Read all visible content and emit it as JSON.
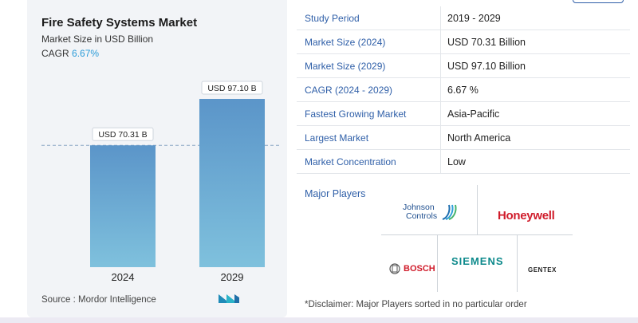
{
  "header": {
    "title": "Fire Safety Systems Market",
    "subtitle": "Market Size in USD Billion",
    "cagr_label": "CAGR",
    "cagr_value": "6.67%"
  },
  "chart_data": {
    "type": "bar",
    "categories": [
      "2024",
      "2029"
    ],
    "values": [
      70.31,
      97.1
    ],
    "data_labels": [
      "USD 70.31 B",
      "USD 97.10 B"
    ],
    "title": "Fire Safety Systems Market",
    "subtitle": "Market Size in USD Billion",
    "ylim": [
      0,
      110
    ],
    "reference_line": 70.31,
    "grid": false,
    "bar_color": "#5b95c9",
    "bar_color_light": "#7fc1dd"
  },
  "source": "Source :  Mordor Intelligence",
  "table": [
    {
      "label": "Study Period",
      "value": "2019 - 2029"
    },
    {
      "label": "Market Size (2024)",
      "value": "USD 70.31 Billion"
    },
    {
      "label": "Market Size (2029)",
      "value": "USD 97.10 Billion"
    },
    {
      "label": "CAGR (2024 - 2029)",
      "value": "6.67 %"
    },
    {
      "label": "Fastest Growing Market",
      "value": "Asia-Pacific"
    },
    {
      "label": "Largest Market",
      "value": "North America"
    },
    {
      "label": "Market Concentration",
      "value": "Low"
    }
  ],
  "players": {
    "title": "Major Players",
    "logos": {
      "johnson_1": "Johnson",
      "johnson_2": "Controls",
      "honeywell": "Honeywell",
      "siemens": "SIEMENS",
      "bosch": "BOSCH",
      "gentex": "GENTEX"
    },
    "disclaimer": "*Disclaimer: Major Players sorted in no particular order"
  },
  "colors": {
    "accent": "#2f5fa8",
    "cagr": "#2b9bd8",
    "honeywell": "#d01c2b",
    "siemens": "#0e8a8c"
  }
}
